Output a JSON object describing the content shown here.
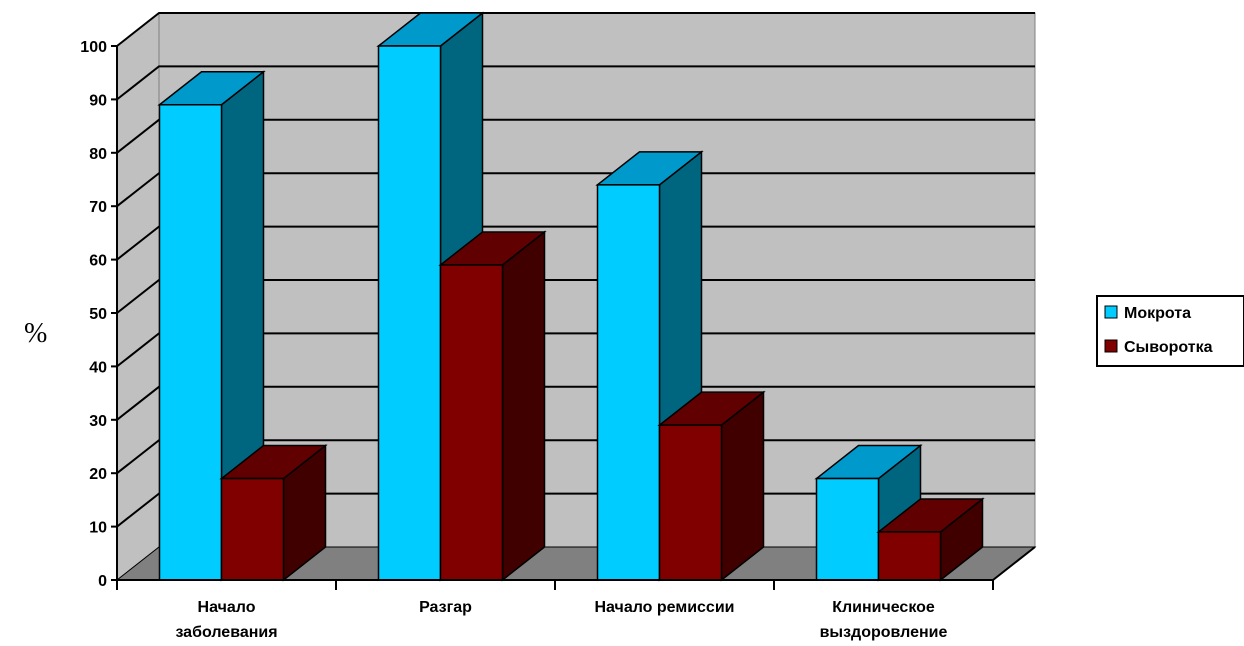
{
  "chart_data": {
    "type": "bar",
    "title": "",
    "xlabel": "",
    "ylabel": "%",
    "ylim": [
      0,
      100
    ],
    "yticks": [
      0,
      10,
      20,
      30,
      40,
      50,
      60,
      70,
      80,
      90,
      100
    ],
    "grid": true,
    "legend_position": "right",
    "categories": [
      [
        "Начало",
        "заболевания"
      ],
      [
        "Разгар"
      ],
      [
        "Начало ремиссии"
      ],
      [
        "Клиническое",
        "выздоровление"
      ]
    ],
    "series": [
      {
        "name": "Мокрота",
        "values": [
          89,
          100,
          74,
          19
        ],
        "color": "#00CCFF",
        "color_side": "#006680",
        "color_top": "#0099CC"
      },
      {
        "name": "Сыворотка",
        "values": [
          19,
          59,
          29,
          9
        ],
        "color": "#800000",
        "color_side": "#400000",
        "color_top": "#600000"
      }
    ]
  }
}
